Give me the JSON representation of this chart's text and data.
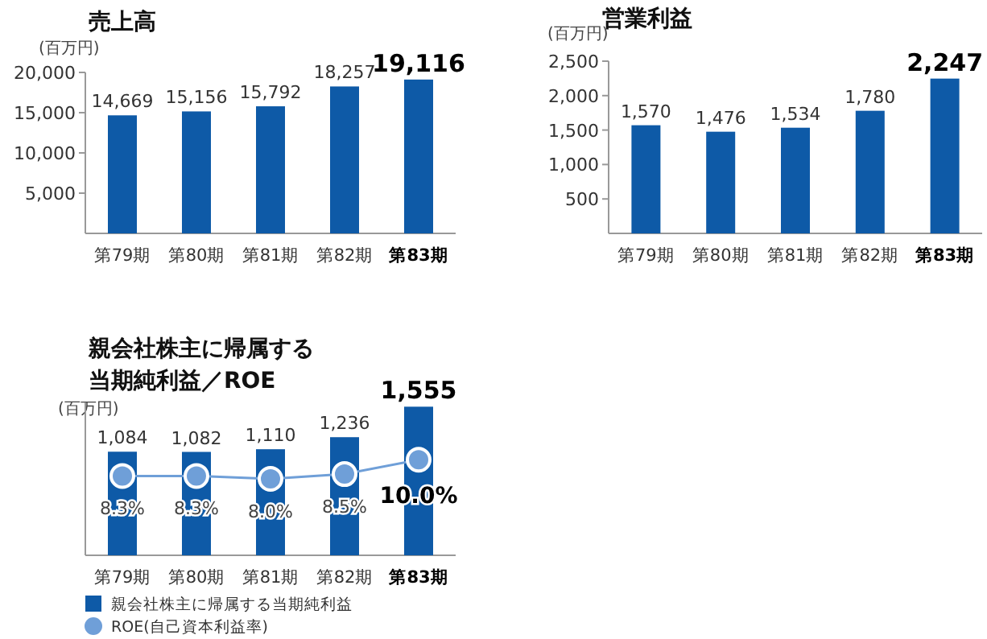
{
  "chart_data": [
    {
      "type": "bar",
      "title": "売上高",
      "ylabel": "(百万円)",
      "categories": [
        "第79期",
        "第80期",
        "第81期",
        "第82期",
        "第83期"
      ],
      "series": [
        {
          "color": "#0e5aa7",
          "values": [
            14669,
            15156,
            15792,
            18257,
            19116
          ],
          "value_labels": [
            "14,669",
            "15,156",
            "15,792",
            "18,257",
            "19,116"
          ]
        }
      ],
      "ylim": [
        0,
        20000
      ],
      "yticks": [
        {
          "value": 5000,
          "label": "5,000"
        },
        {
          "value": 10000,
          "label": "10,000"
        },
        {
          "value": 15000,
          "label": "15,000"
        },
        {
          "value": 20000,
          "label": "20,000"
        }
      ],
      "grid": false,
      "legend": false
    },
    {
      "type": "bar",
      "title": "営業利益",
      "ylabel": "(百万円)",
      "categories": [
        "第79期",
        "第80期",
        "第81期",
        "第82期",
        "第83期"
      ],
      "series": [
        {
          "color": "#0e5aa7",
          "values": [
            1570,
            1476,
            1534,
            1780,
            2247
          ],
          "value_labels": [
            "1,570",
            "1,476",
            "1,534",
            "1,780",
            "2,247"
          ]
        }
      ],
      "ylim": [
        0,
        2500
      ],
      "yticks": [
        500,
        {
          "value": 1000,
          "label": "1,000"
        },
        {
          "value": 1500,
          "label": "1,500"
        },
        {
          "value": 2000,
          "label": "2,000"
        },
        {
          "value": 2500,
          "label": "2,500"
        }
      ],
      "grid": false,
      "legend": false
    },
    {
      "type": "bar",
      "title": "親会社株主に帰属する当期純利益／ROE",
      "ylabel": "(百万円)",
      "categories": [
        "第79期",
        "第80期",
        "第81期",
        "第82期",
        "第83期"
      ],
      "series": [
        {
          "name": "親会社株主に帰属する当期純利益",
          "color": "#0e5aa7",
          "values": [
            1084,
            1082,
            1110,
            1236,
            1555
          ],
          "value_labels": [
            "1,084",
            "1,082",
            "1,110",
            "1,236",
            "1,555"
          ]
        },
        {
          "name": "ROE(自己資本利益率)",
          "type": "line",
          "axis": "y2",
          "color": "#6f9fd8",
          "marker": "circle",
          "values": [
            8.3,
            8.3,
            8.0,
            8.5,
            10.0
          ],
          "value_labels": [
            "8.3%",
            "8.3%",
            "8.0%",
            "8.5%",
            "10.0%"
          ]
        }
      ],
      "ylim": [
        0,
        1600
      ],
      "y2lim": [
        0,
        16
      ],
      "tick_labels": "x",
      "grid": false,
      "legend": "bottom left"
    }
  ]
}
